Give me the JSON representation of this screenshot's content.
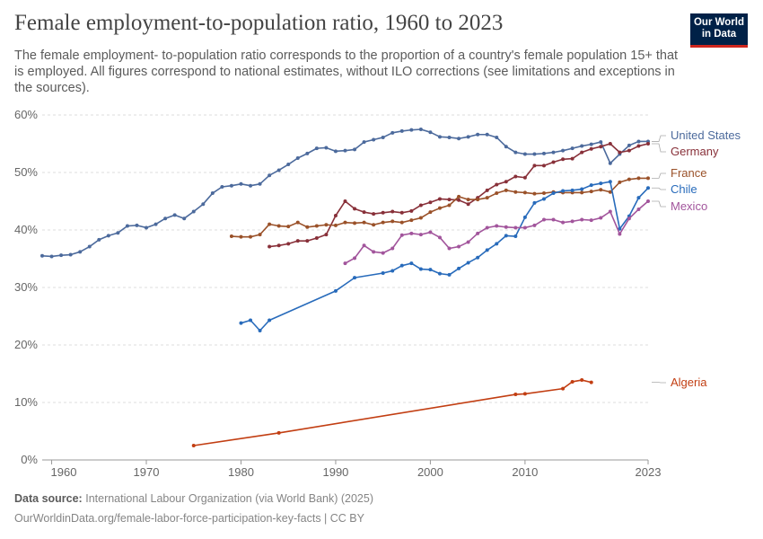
{
  "header": {
    "title": "Female employment-to-population ratio, 1960 to 2023",
    "subtitle": "The female employment- to-population ratio corresponds to the proportion of a country's female population 15+ that is employed. All figures correspond to national estimates, without ILO corrections (see limitations and exceptions in the sources).",
    "logo_line1": "Our World",
    "logo_line2": "in Data"
  },
  "footer": {
    "source_label": "Data source:",
    "source_text": "International Labour Organization (via World Bank) (2025)",
    "url_text": "OurWorldinData.org/female-labor-force-participation-key-facts | CC BY"
  },
  "chart_data": {
    "type": "line",
    "xlim": [
      1959,
      2023
    ],
    "ylim": [
      0,
      60
    ],
    "x_ticks": [
      1960,
      1970,
      1980,
      1990,
      2000,
      2010,
      2023
    ],
    "x_tick_labels": [
      "1960",
      "1970",
      "1980",
      "1990",
      "2000",
      "2010",
      "2023"
    ],
    "y_ticks": [
      0,
      10,
      20,
      30,
      40,
      50,
      60
    ],
    "y_tick_labels": [
      "0%",
      "10%",
      "20%",
      "30%",
      "40%",
      "50%",
      "60%"
    ],
    "grid": "horizontal dashed",
    "legend": "right, labels at line ends",
    "series": [
      {
        "name": "United States",
        "color": "#4c6a9c",
        "x": [
          1959,
          1960,
          1961,
          1962,
          1963,
          1964,
          1965,
          1966,
          1967,
          1968,
          1969,
          1970,
          1971,
          1972,
          1973,
          1974,
          1975,
          1976,
          1977,
          1978,
          1979,
          1980,
          1981,
          1982,
          1983,
          1984,
          1985,
          1986,
          1987,
          1988,
          1989,
          1990,
          1991,
          1992,
          1993,
          1994,
          1995,
          1996,
          1997,
          1998,
          1999,
          2000,
          2001,
          2002,
          2003,
          2004,
          2005,
          2006,
          2007,
          2008,
          2009,
          2010,
          2011,
          2012,
          2013,
          2014,
          2015,
          2016,
          2017,
          2018,
          2019,
          2020,
          2021,
          2022,
          2023
        ],
        "y": [
          35.5,
          35.4,
          35.6,
          35.7,
          36.2,
          37.1,
          38.3,
          39.0,
          39.5,
          40.7,
          40.8,
          40.4,
          41.0,
          42.0,
          42.6,
          42.0,
          43.2,
          44.5,
          46.4,
          47.5,
          47.7,
          48.0,
          47.7,
          48.0,
          49.5,
          50.4,
          51.4,
          52.5,
          53.3,
          54.2,
          54.3,
          53.7,
          53.8,
          54.0,
          55.3,
          55.7,
          56.1,
          56.9,
          57.2,
          57.4,
          57.5,
          57.0,
          56.2,
          56.1,
          55.9,
          56.2,
          56.6,
          56.6,
          56.1,
          54.5,
          53.5,
          53.2,
          53.2,
          53.3,
          53.5,
          53.8,
          54.2,
          54.6,
          54.9,
          55.3,
          51.6,
          53.2,
          54.7,
          55.4,
          55.4
        ]
      },
      {
        "name": "Germany",
        "color": "#883039",
        "x": [
          1983,
          1984,
          1985,
          1986,
          1987,
          1988,
          1989,
          1990,
          1991,
          1992,
          1993,
          1994,
          1995,
          1996,
          1997,
          1998,
          1999,
          2000,
          2001,
          2002,
          2003,
          2004,
          2005,
          2006,
          2007,
          2008,
          2009,
          2010,
          2011,
          2012,
          2013,
          2014,
          2015,
          2016,
          2017,
          2018,
          2019,
          2020,
          2021,
          2022,
          2023
        ],
        "y": [
          37.1,
          37.3,
          37.6,
          38.1,
          38.1,
          38.6,
          39.2,
          42.5,
          45.0,
          43.7,
          43.1,
          42.8,
          43.0,
          43.2,
          43.0,
          43.3,
          44.3,
          44.8,
          45.4,
          45.3,
          45.2,
          44.5,
          45.6,
          46.9,
          47.9,
          48.4,
          49.3,
          49.1,
          51.2,
          51.2,
          51.8,
          52.3,
          52.4,
          53.5,
          54.1,
          54.5,
          55.0,
          53.5,
          53.8,
          54.6,
          55.0
        ]
      },
      {
        "name": "France",
        "color": "#9a5129",
        "x": [
          1979,
          1980,
          1981,
          1982,
          1983,
          1984,
          1985,
          1986,
          1987,
          1988,
          1989,
          1990,
          1991,
          1992,
          1993,
          1994,
          1995,
          1996,
          1997,
          1998,
          1999,
          2000,
          2001,
          2002,
          2003,
          2004,
          2005,
          2006,
          2007,
          2008,
          2009,
          2010,
          2011,
          2012,
          2013,
          2014,
          2015,
          2016,
          2017,
          2018,
          2019,
          2020,
          2021,
          2022,
          2023
        ],
        "y": [
          38.9,
          38.8,
          38.8,
          39.2,
          41.0,
          40.7,
          40.6,
          41.3,
          40.5,
          40.7,
          40.9,
          40.8,
          41.3,
          41.2,
          41.3,
          40.9,
          41.3,
          41.5,
          41.3,
          41.7,
          42.1,
          43.1,
          43.8,
          44.3,
          45.8,
          45.3,
          45.3,
          45.6,
          46.4,
          46.9,
          46.6,
          46.5,
          46.3,
          46.4,
          46.6,
          46.5,
          46.5,
          46.5,
          46.7,
          47.0,
          46.6,
          48.3,
          48.8,
          49.0,
          49.0
        ]
      },
      {
        "name": "Chile",
        "color": "#286bbb",
        "x": [
          1980,
          1981,
          1982,
          1983,
          1990,
          1992,
          1995,
          1996,
          1997,
          1998,
          1999,
          2000,
          2001,
          2002,
          2003,
          2004,
          2005,
          2006,
          2007,
          2008,
          2009,
          2010,
          2011,
          2012,
          2013,
          2014,
          2015,
          2016,
          2017,
          2018,
          2019,
          2020,
          2021,
          2022,
          2023
        ],
        "y": [
          23.8,
          24.3,
          22.5,
          24.3,
          29.4,
          31.7,
          32.5,
          32.9,
          33.8,
          34.2,
          33.2,
          33.1,
          32.4,
          32.2,
          33.3,
          34.3,
          35.2,
          36.5,
          37.6,
          39.0,
          38.9,
          42.2,
          44.7,
          45.4,
          46.4,
          46.8,
          46.9,
          47.1,
          47.8,
          48.1,
          48.4,
          40.2,
          42.4,
          45.6,
          47.3
        ]
      },
      {
        "name": "Mexico",
        "color": "#a2559c",
        "x": [
          1991,
          1992,
          1993,
          1994,
          1995,
          1996,
          1997,
          1998,
          1999,
          2000,
          2001,
          2002,
          2003,
          2004,
          2005,
          2006,
          2007,
          2008,
          2009,
          2010,
          2011,
          2012,
          2013,
          2014,
          2015,
          2016,
          2017,
          2018,
          2019,
          2020,
          2021,
          2022,
          2023
        ],
        "y": [
          34.2,
          35.1,
          37.3,
          36.2,
          36.0,
          36.8,
          39.1,
          39.4,
          39.2,
          39.6,
          38.7,
          36.8,
          37.1,
          37.9,
          39.4,
          40.4,
          40.7,
          40.5,
          40.4,
          40.4,
          40.8,
          41.8,
          41.8,
          41.3,
          41.5,
          41.8,
          41.7,
          42.1,
          43.2,
          39.3,
          42.0,
          43.6,
          45.0
        ]
      },
      {
        "name": "Algeria",
        "color": "#c23e12",
        "x": [
          1975,
          1984,
          2009,
          2010,
          2014,
          2015,
          2016,
          2017
        ],
        "y": [
          2.5,
          4.7,
          11.4,
          11.5,
          12.4,
          13.6,
          13.9,
          13.5
        ]
      }
    ]
  }
}
